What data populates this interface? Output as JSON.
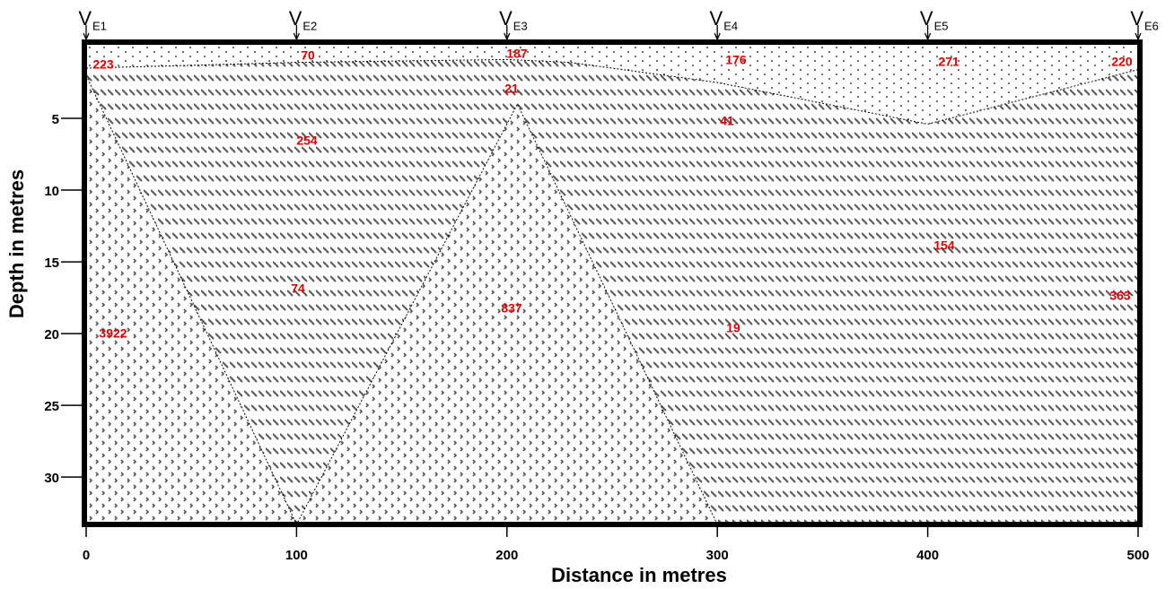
{
  "chart_data": {
    "type": "section",
    "xlabel": "Distance in metres",
    "ylabel": "Depth in metres",
    "xlim": [
      0,
      500
    ],
    "ylim": [
      0,
      33.3
    ],
    "y_inverted": true,
    "xticks": [
      0,
      100,
      200,
      300,
      400,
      500
    ],
    "yticks": [
      5,
      10,
      15,
      20,
      25,
      30
    ],
    "stations": [
      {
        "name": "V",
        "sub": "E1",
        "x": 0
      },
      {
        "name": "V",
        "sub": "E2",
        "x": 100
      },
      {
        "name": "V",
        "sub": "E3",
        "x": 200
      },
      {
        "name": "V",
        "sub": "E4",
        "x": 300
      },
      {
        "name": "V",
        "sub": "E5",
        "x": 400
      },
      {
        "name": "V",
        "sub": "E6",
        "x": 500
      }
    ],
    "boundaries": [
      {
        "x": [
          0,
          100,
          200,
          230,
          300,
          400,
          500
        ],
        "depth": [
          1.5,
          1.1,
          0.9,
          1.1,
          2.5,
          5.4,
          1.6
        ]
      },
      {
        "x": [
          0,
          100,
          205,
          300
        ],
        "depth": [
          2,
          33.3,
          4,
          33.3
        ]
      }
    ],
    "resistivity_labels": [
      223,
      70,
      187,
      176,
      271,
      220,
      21,
      254,
      41,
      154,
      74,
      363,
      837,
      3922,
      19
    ]
  }
}
